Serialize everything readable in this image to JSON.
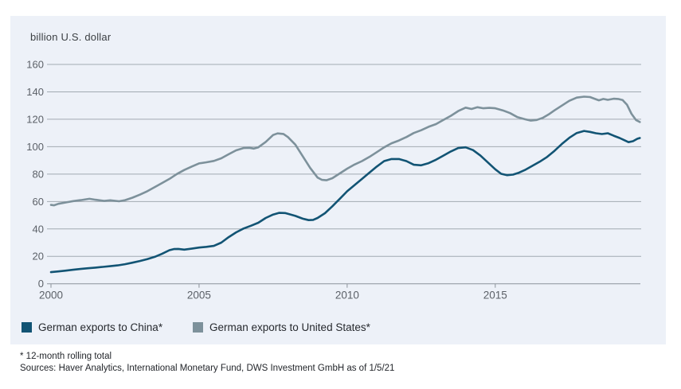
{
  "panel": {
    "background": "#edf1f8"
  },
  "title": "billion U.S. dollar",
  "legend": [
    {
      "label": "German exports to China*",
      "color": "#125474"
    },
    {
      "label": "German exports to United States*",
      "color": "#7d919b"
    }
  ],
  "footer": {
    "line1": "* 12-month rolling total",
    "line2": "Sources: Haver Analytics, International Monetary Fund, DWS Investment GmbH as of 1/5/21"
  },
  "colors": {
    "china_line": "#125474",
    "us_line": "#7d919b",
    "gridline": "#a2aab2",
    "axis": "#8b929a",
    "tick_label": "#5c6168"
  },
  "chart_data": {
    "type": "line",
    "title": "billion U.S. dollar",
    "xlabel": "",
    "ylabel": "billion U.S. dollar",
    "xlim": [
      2000,
      2019.9
    ],
    "ylim": [
      0,
      160
    ],
    "x_ticks": [
      2000,
      2005,
      2010,
      2015
    ],
    "y_ticks": [
      0,
      20,
      40,
      60,
      80,
      100,
      120,
      140,
      160
    ],
    "grid": "horizontal",
    "legend_position": "bottom",
    "series": [
      {
        "name": "German exports to China*",
        "color": "#125474",
        "points": [
          [
            2000.0,
            8.5
          ],
          [
            2000.25,
            9.0
          ],
          [
            2000.5,
            9.6
          ],
          [
            2000.75,
            10.2
          ],
          [
            2001.0,
            10.8
          ],
          [
            2001.25,
            11.3
          ],
          [
            2001.5,
            11.8
          ],
          [
            2001.75,
            12.3
          ],
          [
            2002.0,
            12.8
          ],
          [
            2002.25,
            13.4
          ],
          [
            2002.5,
            14.3
          ],
          [
            2002.75,
            15.4
          ],
          [
            2003.0,
            16.6
          ],
          [
            2003.25,
            18.0
          ],
          [
            2003.5,
            19.6
          ],
          [
            2003.75,
            21.8
          ],
          [
            2004.0,
            24.5
          ],
          [
            2004.15,
            25.3
          ],
          [
            2004.3,
            25.4
          ],
          [
            2004.5,
            24.9
          ],
          [
            2004.75,
            25.6
          ],
          [
            2005.0,
            26.4
          ],
          [
            2005.25,
            26.9
          ],
          [
            2005.5,
            27.6
          ],
          [
            2005.75,
            30.0
          ],
          [
            2006.0,
            34.0
          ],
          [
            2006.25,
            37.5
          ],
          [
            2006.5,
            40.3
          ],
          [
            2006.75,
            42.3
          ],
          [
            2007.0,
            44.5
          ],
          [
            2007.25,
            48.0
          ],
          [
            2007.5,
            50.5
          ],
          [
            2007.7,
            51.7
          ],
          [
            2007.9,
            51.6
          ],
          [
            2008.0,
            51.0
          ],
          [
            2008.25,
            49.5
          ],
          [
            2008.5,
            47.5
          ],
          [
            2008.7,
            46.4
          ],
          [
            2008.85,
            46.6
          ],
          [
            2009.0,
            48.0
          ],
          [
            2009.25,
            51.5
          ],
          [
            2009.5,
            56.5
          ],
          [
            2009.75,
            62.0
          ],
          [
            2010.0,
            67.5
          ],
          [
            2010.25,
            72.0
          ],
          [
            2010.5,
            76.5
          ],
          [
            2010.75,
            81.0
          ],
          [
            2011.0,
            85.5
          ],
          [
            2011.25,
            89.5
          ],
          [
            2011.5,
            91.0
          ],
          [
            2011.75,
            91.0
          ],
          [
            2012.0,
            89.5
          ],
          [
            2012.25,
            86.8
          ],
          [
            2012.5,
            86.4
          ],
          [
            2012.75,
            88.0
          ],
          [
            2013.0,
            90.5
          ],
          [
            2013.25,
            93.5
          ],
          [
            2013.5,
            96.5
          ],
          [
            2013.75,
            99.0
          ],
          [
            2014.0,
            99.5
          ],
          [
            2014.25,
            97.5
          ],
          [
            2014.5,
            93.5
          ],
          [
            2014.75,
            88.5
          ],
          [
            2015.0,
            83.5
          ],
          [
            2015.2,
            80.2
          ],
          [
            2015.4,
            79.2
          ],
          [
            2015.6,
            79.6
          ],
          [
            2015.8,
            81.0
          ],
          [
            2016.0,
            83.0
          ],
          [
            2016.25,
            86.0
          ],
          [
            2016.5,
            89.0
          ],
          [
            2016.75,
            92.5
          ],
          [
            2017.0,
            97.0
          ],
          [
            2017.25,
            102.0
          ],
          [
            2017.5,
            106.5
          ],
          [
            2017.75,
            110.0
          ],
          [
            2018.0,
            111.5
          ],
          [
            2018.2,
            110.8
          ],
          [
            2018.4,
            109.8
          ],
          [
            2018.6,
            109.2
          ],
          [
            2018.8,
            109.8
          ],
          [
            2019.0,
            108.0
          ],
          [
            2019.2,
            106.3
          ],
          [
            2019.35,
            104.8
          ],
          [
            2019.5,
            103.3
          ],
          [
            2019.65,
            104.0
          ],
          [
            2019.8,
            105.8
          ],
          [
            2019.88,
            106.3
          ]
        ]
      },
      {
        "name": "German exports to United States*",
        "color": "#7d919b",
        "points": [
          [
            2000.0,
            57.5
          ],
          [
            2000.1,
            57.2
          ],
          [
            2000.25,
            58.3
          ],
          [
            2000.5,
            59.3
          ],
          [
            2000.75,
            60.3
          ],
          [
            2001.0,
            61.0
          ],
          [
            2001.3,
            62.0
          ],
          [
            2001.5,
            61.3
          ],
          [
            2001.8,
            60.4
          ],
          [
            2002.0,
            60.9
          ],
          [
            2002.3,
            60.2
          ],
          [
            2002.5,
            61.0
          ],
          [
            2002.75,
            62.8
          ],
          [
            2003.0,
            65.0
          ],
          [
            2003.25,
            67.5
          ],
          [
            2003.5,
            70.5
          ],
          [
            2003.75,
            73.5
          ],
          [
            2004.0,
            76.5
          ],
          [
            2004.25,
            80.0
          ],
          [
            2004.5,
            83.0
          ],
          [
            2004.75,
            85.5
          ],
          [
            2005.0,
            87.8
          ],
          [
            2005.25,
            88.6
          ],
          [
            2005.5,
            89.6
          ],
          [
            2005.75,
            91.5
          ],
          [
            2006.0,
            94.5
          ],
          [
            2006.25,
            97.3
          ],
          [
            2006.5,
            99.0
          ],
          [
            2006.7,
            99.2
          ],
          [
            2006.85,
            98.6
          ],
          [
            2007.0,
            99.5
          ],
          [
            2007.25,
            103.5
          ],
          [
            2007.5,
            108.5
          ],
          [
            2007.65,
            109.7
          ],
          [
            2007.85,
            109.3
          ],
          [
            2008.0,
            107.0
          ],
          [
            2008.25,
            101.5
          ],
          [
            2008.5,
            93.0
          ],
          [
            2008.75,
            84.5
          ],
          [
            2009.0,
            77.5
          ],
          [
            2009.15,
            75.8
          ],
          [
            2009.3,
            75.5
          ],
          [
            2009.5,
            77.0
          ],
          [
            2009.75,
            80.5
          ],
          [
            2010.0,
            84.0
          ],
          [
            2010.25,
            87.0
          ],
          [
            2010.5,
            89.5
          ],
          [
            2010.75,
            92.5
          ],
          [
            2011.0,
            96.0
          ],
          [
            2011.25,
            99.5
          ],
          [
            2011.5,
            102.5
          ],
          [
            2011.75,
            104.5
          ],
          [
            2012.0,
            107.0
          ],
          [
            2012.25,
            110.0
          ],
          [
            2012.5,
            112.0
          ],
          [
            2012.75,
            114.5
          ],
          [
            2013.0,
            116.5
          ],
          [
            2013.25,
            119.5
          ],
          [
            2013.5,
            122.5
          ],
          [
            2013.75,
            126.0
          ],
          [
            2014.0,
            128.5
          ],
          [
            2014.2,
            127.5
          ],
          [
            2014.4,
            128.8
          ],
          [
            2014.6,
            128.0
          ],
          [
            2014.8,
            128.3
          ],
          [
            2015.0,
            128.0
          ],
          [
            2015.25,
            126.5
          ],
          [
            2015.5,
            124.5
          ],
          [
            2015.75,
            121.5
          ],
          [
            2016.0,
            120.0
          ],
          [
            2016.2,
            119.0
          ],
          [
            2016.4,
            119.5
          ],
          [
            2016.6,
            121.0
          ],
          [
            2016.8,
            123.5
          ],
          [
            2017.0,
            126.5
          ],
          [
            2017.25,
            130.0
          ],
          [
            2017.5,
            133.5
          ],
          [
            2017.75,
            135.8
          ],
          [
            2018.0,
            136.5
          ],
          [
            2018.2,
            136.2
          ],
          [
            2018.35,
            135.0
          ],
          [
            2018.5,
            133.8
          ],
          [
            2018.65,
            134.8
          ],
          [
            2018.8,
            134.2
          ],
          [
            2019.0,
            135.0
          ],
          [
            2019.15,
            134.8
          ],
          [
            2019.3,
            134.0
          ],
          [
            2019.45,
            130.5
          ],
          [
            2019.6,
            124.0
          ],
          [
            2019.75,
            119.5
          ],
          [
            2019.88,
            118.0
          ]
        ]
      }
    ]
  }
}
